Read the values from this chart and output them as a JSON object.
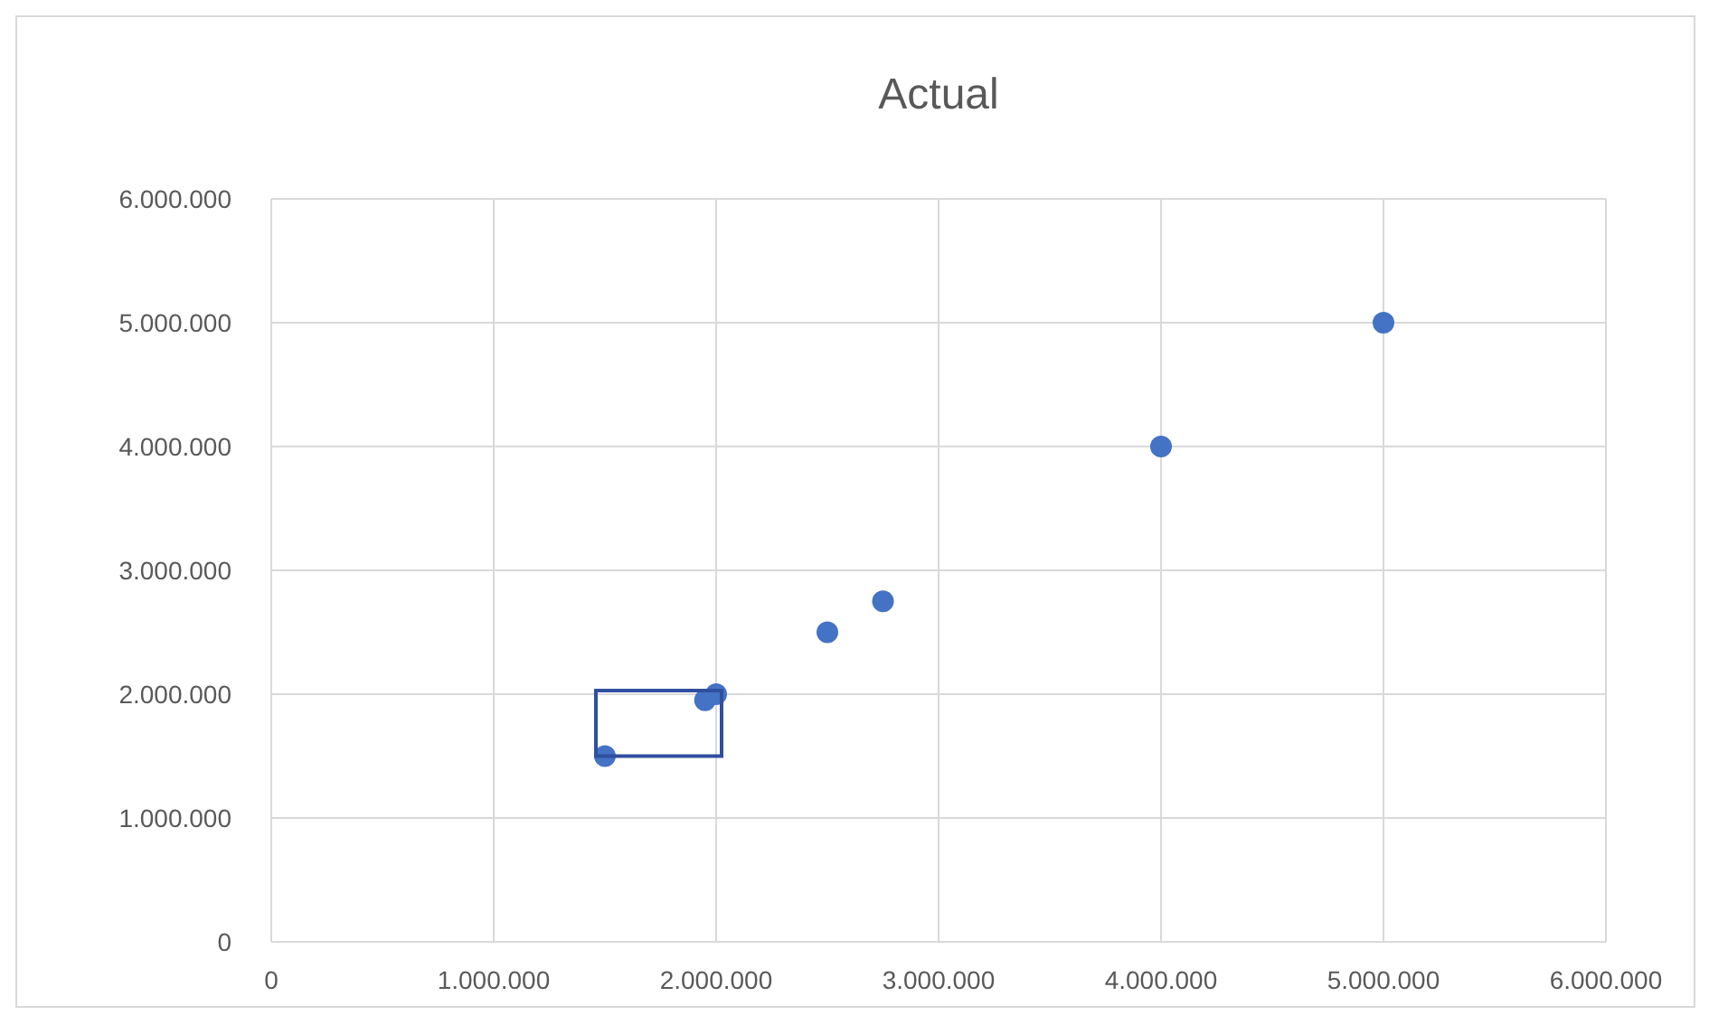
{
  "chart_data": {
    "type": "scatter",
    "title": "Actual",
    "x": [
      1500000,
      1950000,
      2000000,
      2500000,
      2750000,
      4000000,
      5000000
    ],
    "values": [
      1500000,
      1950000,
      2000000,
      2500000,
      2750000,
      4000000,
      5000000
    ],
    "color": "#4472c4",
    "marker": "circle",
    "grid": true,
    "xlim": [
      0,
      6000000
    ],
    "ylim": [
      0,
      6000000
    ],
    "xticks": [
      {
        "value": 0,
        "label": "0"
      },
      {
        "value": 1000000,
        "label": "1.000.000"
      },
      {
        "value": 2000000,
        "label": "2.000.000"
      },
      {
        "value": 3000000,
        "label": "3.000.000"
      },
      {
        "value": 4000000,
        "label": "4.000.000"
      },
      {
        "value": 5000000,
        "label": "5.000.000"
      },
      {
        "value": 6000000,
        "label": "6.000.000"
      }
    ],
    "yticks": [
      {
        "value": 0,
        "label": "0"
      },
      {
        "value": 1000000,
        "label": "1.000.000"
      },
      {
        "value": 2000000,
        "label": "2.000.000"
      },
      {
        "value": 3000000,
        "label": "3.000.000"
      },
      {
        "value": 4000000,
        "label": "4.000.000"
      },
      {
        "value": 5000000,
        "label": "5.000.000"
      },
      {
        "value": 6000000,
        "label": "6.000.000"
      }
    ]
  }
}
